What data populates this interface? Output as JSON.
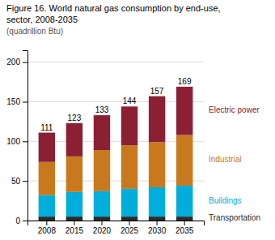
{
  "chart_data": {
    "type": "bar",
    "stacked": true,
    "title": [
      "Figure 16. World natural gas consumption by end-use,",
      "sector, 2008-2035"
    ],
    "subtitle": "(quadrillion Btu)",
    "categories": [
      "2008",
      "2015",
      "2020",
      "2025",
      "2030",
      "2035"
    ],
    "series": [
      {
        "name": "Transportation",
        "color": "#2b2b2b",
        "values": [
          5,
          5,
          5,
          5,
          5,
          5
        ]
      },
      {
        "name": "Buildings",
        "color": "#00aedb",
        "values": [
          27,
          31,
          32,
          35,
          37,
          39
        ]
      },
      {
        "name": "Industrial",
        "color": "#c8791e",
        "values": [
          42,
          45,
          52,
          55,
          57,
          64
        ]
      },
      {
        "name": "Electric power",
        "color": "#8b2035",
        "values": [
          37,
          42,
          44,
          49,
          58,
          61
        ]
      }
    ],
    "totals": [
      111,
      123,
      133,
      144,
      157,
      169
    ],
    "ylim": [
      0,
      215
    ],
    "yticks": [
      0,
      50,
      100,
      150,
      200
    ],
    "grid": true,
    "legend": "right"
  }
}
